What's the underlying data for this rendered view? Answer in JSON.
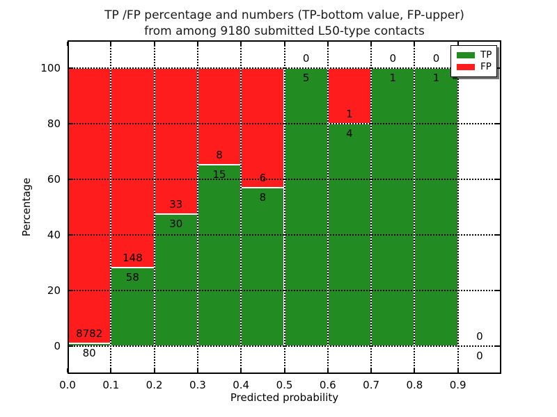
{
  "chart_data": {
    "type": "bar",
    "stacked": true,
    "title_lines": [
      "TP /FP percentage and numbers (TP-bottom value, FP-upper)",
      "from among 9180 submitted L50-type contacts"
    ],
    "xlabel": "Predicted probability",
    "ylabel": "Percentage",
    "xlim": [
      0.0,
      1.0
    ],
    "ylim": [
      -10,
      110
    ],
    "grid": true,
    "legend_position": "upper right",
    "colors": {
      "tp": "#228b22",
      "fp": "#ff1c1c"
    },
    "x_ticks": [
      {
        "label": "0.0",
        "value": 0.0
      },
      {
        "label": "0.1",
        "value": 0.1
      },
      {
        "label": "0.2",
        "value": 0.2
      },
      {
        "label": "0.3",
        "value": 0.3
      },
      {
        "label": "0.4",
        "value": 0.4
      },
      {
        "label": "0.5",
        "value": 0.5
      },
      {
        "label": "0.6",
        "value": 0.6
      },
      {
        "label": "0.7",
        "value": 0.7
      },
      {
        "label": "0.8",
        "value": 0.8
      },
      {
        "label": "0.9",
        "value": 0.9
      }
    ],
    "y_ticks": [
      {
        "label": "0",
        "value": 0
      },
      {
        "label": "20",
        "value": 20
      },
      {
        "label": "40",
        "value": 40
      },
      {
        "label": "60",
        "value": 60
      },
      {
        "label": "80",
        "value": 80
      },
      {
        "label": "100",
        "value": 100
      }
    ],
    "series": [
      {
        "name": "TP",
        "color": "#228b22",
        "counts": [
          80,
          58,
          30,
          15,
          8,
          5,
          4,
          1,
          1,
          0
        ]
      },
      {
        "name": "FP",
        "color": "#ff1c1c",
        "counts": [
          8782,
          148,
          33,
          8,
          6,
          0,
          1,
          0,
          0,
          0
        ]
      }
    ],
    "bins": [
      {
        "range": [
          0.0,
          0.1
        ],
        "tp": 80,
        "fp": 8782,
        "tp_percent": 0.9
      },
      {
        "range": [
          0.1,
          0.2
        ],
        "tp": 58,
        "fp": 148,
        "tp_percent": 28.2
      },
      {
        "range": [
          0.2,
          0.3
        ],
        "tp": 30,
        "fp": 33,
        "tp_percent": 47.6
      },
      {
        "range": [
          0.3,
          0.4
        ],
        "tp": 15,
        "fp": 8,
        "tp_percent": 65.2
      },
      {
        "range": [
          0.4,
          0.5
        ],
        "tp": 8,
        "fp": 6,
        "tp_percent": 57.1
      },
      {
        "range": [
          0.5,
          0.6
        ],
        "tp": 5,
        "fp": 0,
        "tp_percent": 100
      },
      {
        "range": [
          0.6,
          0.7
        ],
        "tp": 4,
        "fp": 1,
        "tp_percent": 80
      },
      {
        "range": [
          0.7,
          0.8
        ],
        "tp": 1,
        "fp": 0,
        "tp_percent": 100
      },
      {
        "range": [
          0.8,
          0.9
        ],
        "tp": 1,
        "fp": 0,
        "tp_percent": 100
      },
      {
        "range": [
          0.9,
          1.0
        ],
        "tp": 0,
        "fp": 0,
        "tp_percent": 0
      }
    ]
  }
}
